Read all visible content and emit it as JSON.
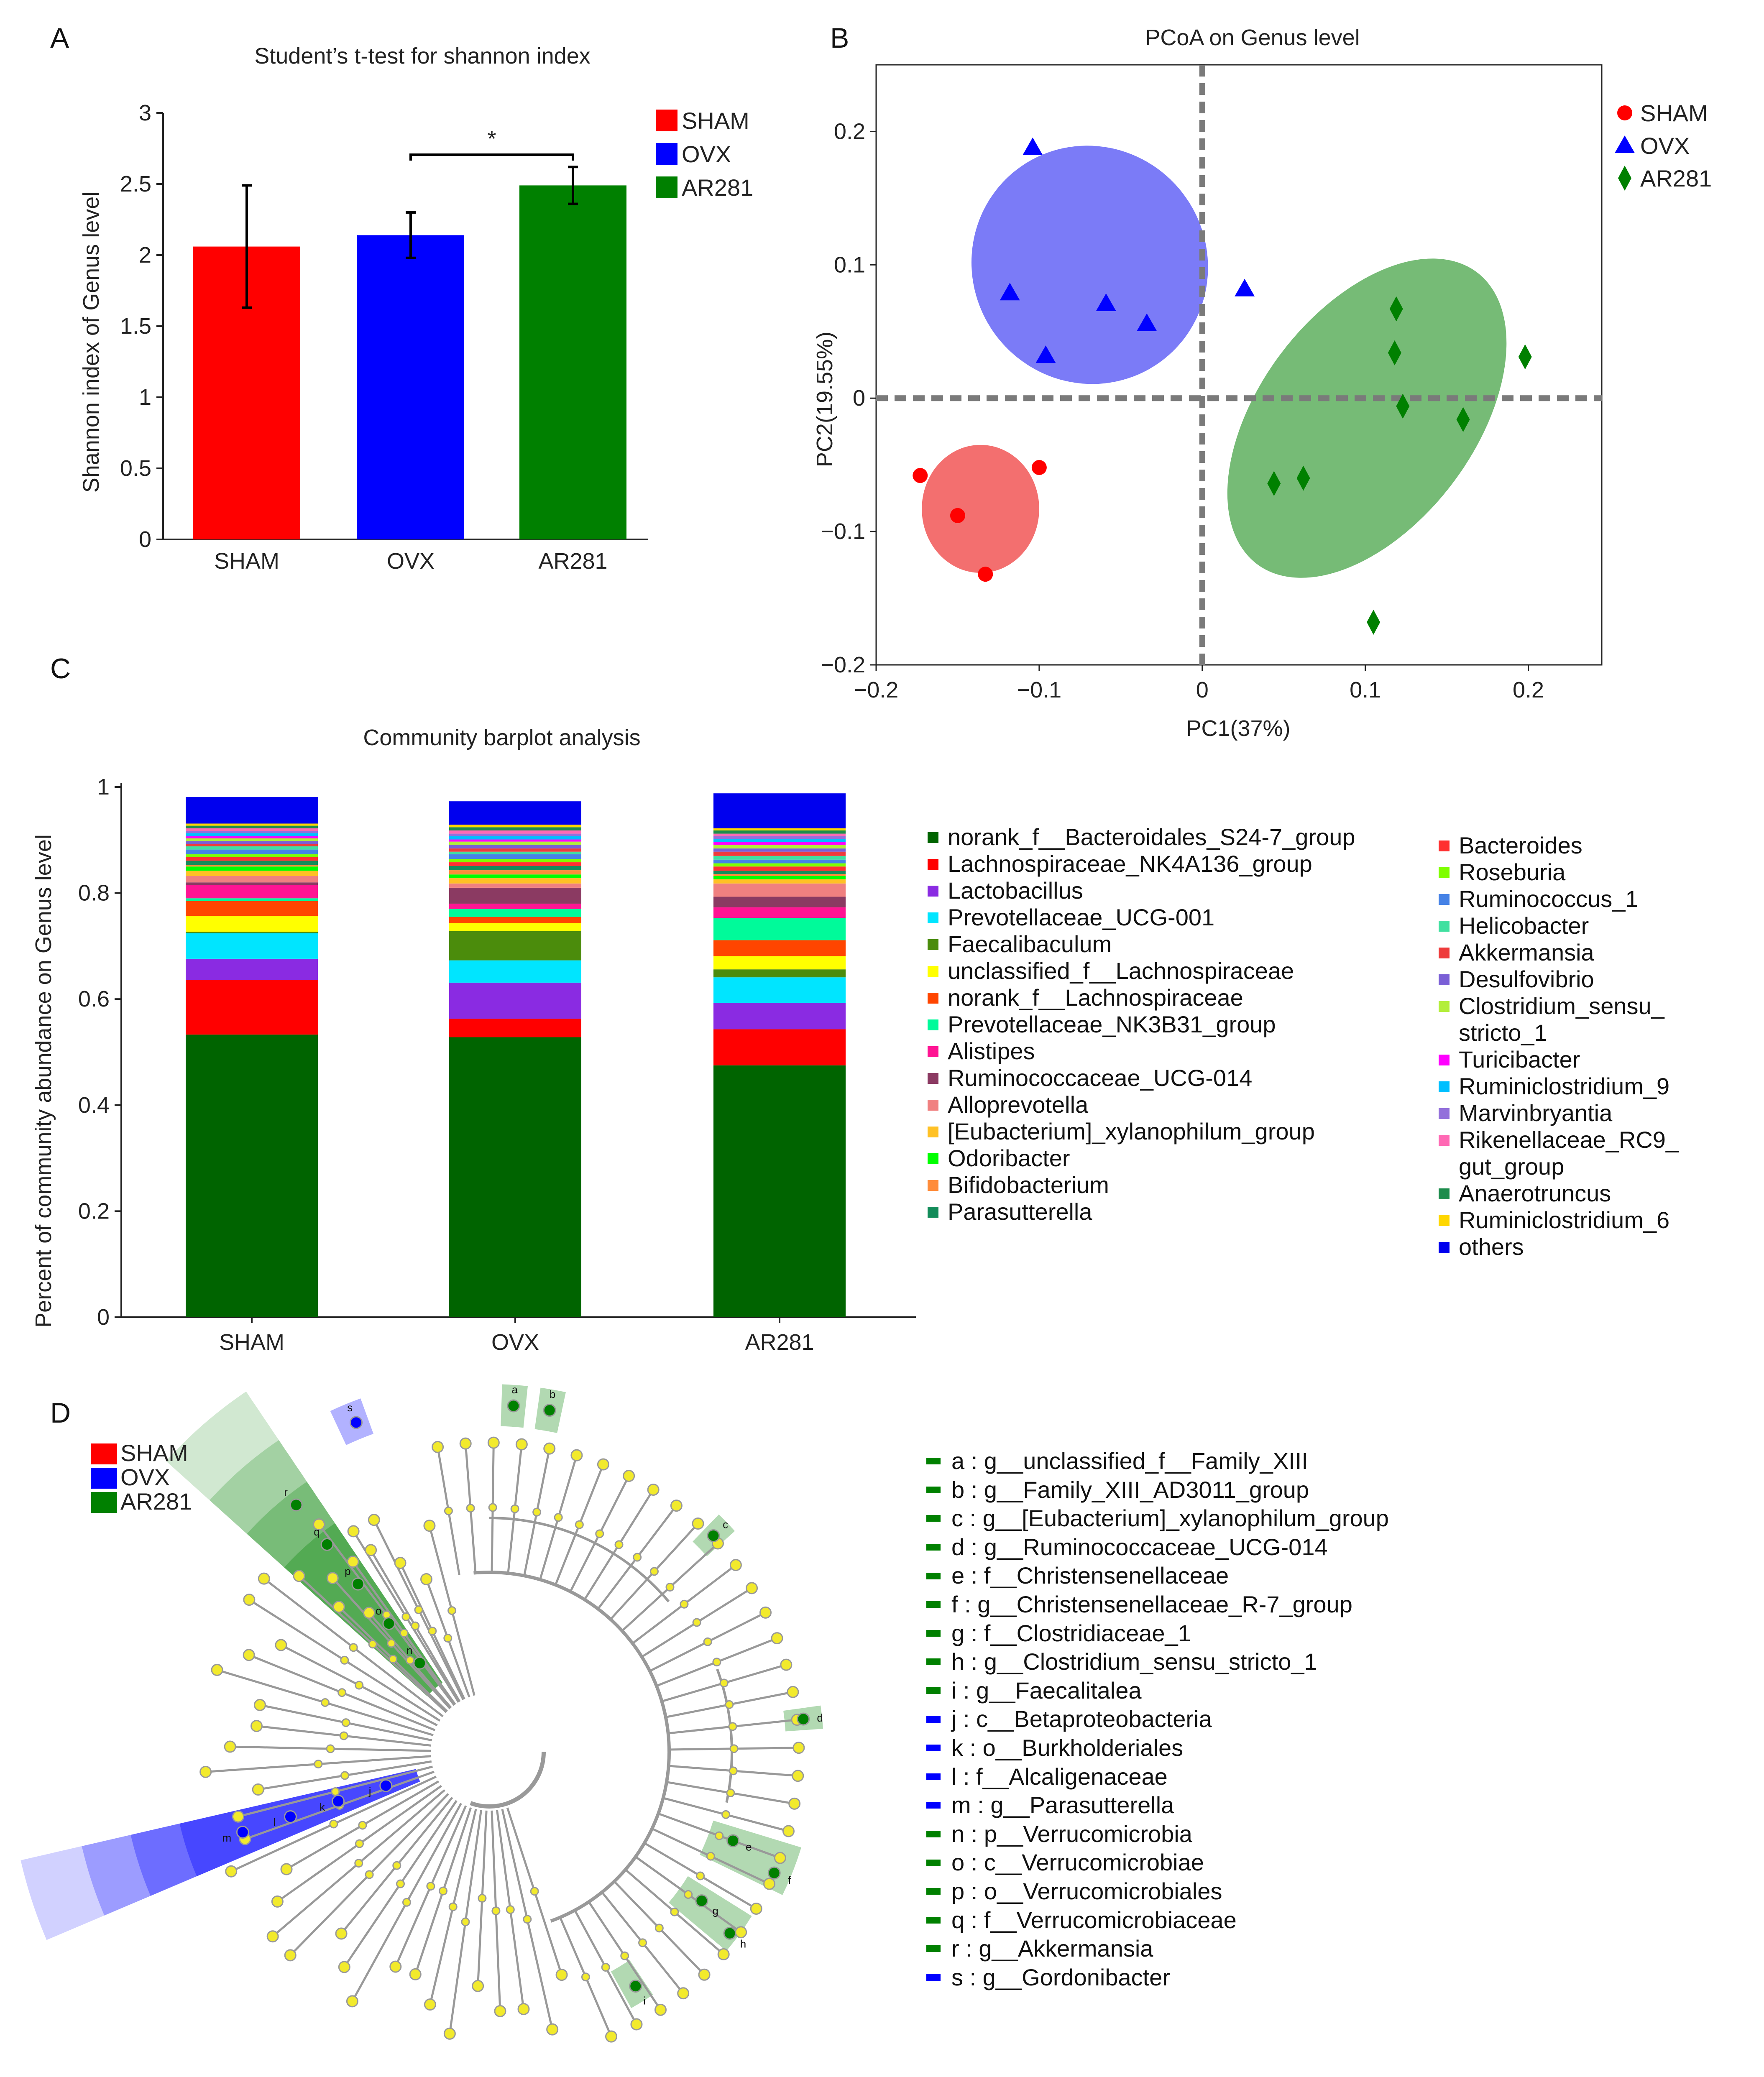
{
  "panels": {
    "a_letter": "A",
    "b_letter": "B",
    "c_letter": "C",
    "d_letter": "D"
  },
  "colors": {
    "sham": "#ff0000",
    "ovx": "#0000ff",
    "ar281": "#008000",
    "sham_fill": "#f36f6f",
    "ovx_fill": "#7b7bf7",
    "ar281_fill": "#76bb76"
  },
  "chart_data": [
    {
      "id": "A",
      "type": "bar",
      "title": "Student’s t-test for shannon index",
      "xlabel": "",
      "ylabel": "Shannon index of Genus level",
      "categories": [
        "SHAM",
        "OVX",
        "AR281"
      ],
      "values": [
        2.06,
        2.14,
        2.49
      ],
      "errors": [
        0.43,
        0.16,
        0.13
      ],
      "ylim": [
        0,
        3
      ],
      "yticks": [
        0,
        0.5,
        1,
        1.5,
        2,
        2.5,
        3
      ],
      "ytick_labels": [
        "0",
        "0.5",
        "1",
        "1.5",
        "2",
        "2.5",
        "3"
      ],
      "bar_colors": [
        "#ff0000",
        "#0000ff",
        "#008000"
      ],
      "significance": {
        "from": "OVX",
        "to": "AR281",
        "label": "*"
      },
      "legend": [
        "SHAM",
        "OVX",
        "AR281"
      ],
      "legend_position": "top-right"
    },
    {
      "id": "B",
      "type": "scatter",
      "title": "PCoA on Genus level",
      "xlabel": "PC1(37%)",
      "ylabel": "PC2(19.55%)",
      "xlim": [
        -0.2,
        0.245
      ],
      "ylim": [
        -0.2,
        0.25
      ],
      "xticks": [
        -0.2,
        -0.1,
        0,
        0.1,
        0.2
      ],
      "xtick_labels": [
        "−0.2",
        "−0.1",
        "0",
        "0.1",
        "0.2"
      ],
      "yticks": [
        -0.2,
        -0.1,
        0,
        0.1,
        0.2
      ],
      "ytick_labels": [
        "−0.2",
        "−0.1",
        "0",
        "0.1",
        "0.2"
      ],
      "series": [
        {
          "name": "SHAM",
          "marker": "circle",
          "color": "#ff0000",
          "points": [
            [
              -0.173,
              -0.058
            ],
            [
              -0.1,
              -0.052
            ],
            [
              -0.15,
              -0.088
            ],
            [
              -0.133,
              -0.132
            ]
          ],
          "ellipse": {
            "cx": -0.136,
            "cy": -0.083,
            "rx": 0.036,
            "ry": 0.048,
            "angle": 0
          }
        },
        {
          "name": "OVX",
          "marker": "triangle",
          "color": "#0000ff",
          "points": [
            [
              -0.104,
              0.188
            ],
            [
              -0.118,
              0.079
            ],
            [
              -0.059,
              0.071
            ],
            [
              -0.034,
              0.056
            ],
            [
              -0.096,
              0.032
            ],
            [
              0.026,
              0.082
            ]
          ],
          "ellipse": {
            "cx": -0.069,
            "cy": 0.1,
            "rx": 0.072,
            "ry": 0.09,
            "angle": -35
          }
        },
        {
          "name": "AR281",
          "marker": "diamond",
          "color": "#008000",
          "points": [
            [
              0.119,
              0.067
            ],
            [
              0.118,
              0.034
            ],
            [
              0.198,
              0.031
            ],
            [
              0.123,
              -0.006
            ],
            [
              0.16,
              -0.016
            ],
            [
              0.062,
              -0.06
            ],
            [
              0.044,
              -0.064
            ],
            [
              0.105,
              -0.168
            ]
          ],
          "ellipse": {
            "cx": 0.101,
            "cy": -0.015,
            "rx": 0.066,
            "ry": 0.137,
            "angle": 37
          }
        }
      ],
      "legend": [
        "SHAM",
        "OVX",
        "AR281"
      ],
      "legend_position": "top-right"
    },
    {
      "id": "C",
      "type": "bar",
      "stacked": true,
      "title": "Community barplot analysis",
      "xlabel": "",
      "ylabel": "Percent of community abundance on Genus level",
      "categories": [
        "SHAM",
        "OVX",
        "AR281"
      ],
      "ylim": [
        0,
        1
      ],
      "yticks": [
        0,
        0.2,
        0.4,
        0.6,
        0.8,
        1
      ],
      "ytick_labels": [
        "0",
        "0.2",
        "0.4",
        "0.6",
        "0.8",
        "1"
      ],
      "series": [
        {
          "name": "norank_f__Bacteroidales_S24-7_group",
          "color": "#006400",
          "values": [
            0.533,
            0.528,
            0.475
          ]
        },
        {
          "name": "Lachnospiraceae_NK4A136_group",
          "color": "#ff0000",
          "values": [
            0.103,
            0.035,
            0.068
          ]
        },
        {
          "name": "Lactobacillus",
          "color": "#8a2be2",
          "values": [
            0.04,
            0.068,
            0.05
          ]
        },
        {
          "name": "Prevotellaceae_UCG-001",
          "color": "#00e5ff",
          "values": [
            0.048,
            0.042,
            0.048
          ]
        },
        {
          "name": "Faecalibaculum",
          "color": "#4b8c0c",
          "values": [
            0.003,
            0.055,
            0.015
          ]
        },
        {
          "name": "unclassified_f__Lachnospiraceae",
          "color": "#ffff00",
          "values": [
            0.03,
            0.015,
            0.025
          ]
        },
        {
          "name": "norank_f__Lachnospiraceae",
          "color": "#ff4500",
          "values": [
            0.028,
            0.012,
            0.03
          ]
        },
        {
          "name": "Prevotellaceae_NK3B31_group",
          "color": "#00fa9a",
          "values": [
            0.005,
            0.015,
            0.042
          ]
        },
        {
          "name": "Alistipes",
          "color": "#ff1493",
          "values": [
            0.025,
            0.01,
            0.02
          ]
        },
        {
          "name": "Ruminococcaceae_UCG-014",
          "color": "#8b3a62",
          "values": [
            0.005,
            0.03,
            0.02
          ]
        },
        {
          "name": "Alloprevotella",
          "color": "#f08080",
          "values": [
            0.012,
            0.008,
            0.025
          ]
        },
        {
          "name": "[Eubacterium]_xylanophilum_group",
          "color": "#ffc125",
          "values": [
            0.01,
            0.01,
            0.008
          ]
        },
        {
          "name": "Odoribacter",
          "color": "#00ff00",
          "values": [
            0.008,
            0.007,
            0.006
          ]
        },
        {
          "name": "Bifidobacterium",
          "color": "#ff8c3a",
          "values": [
            0.003,
            0.008,
            0.004
          ]
        },
        {
          "name": "Parasutterella",
          "color": "#138c5a",
          "values": [
            0.008,
            0.008,
            0.006
          ]
        },
        {
          "name": "Bacteroides",
          "color": "#ff3030",
          "values": [
            0.007,
            0.007,
            0.008
          ]
        },
        {
          "name": "Roseburia",
          "color": "#7fff00",
          "values": [
            0.005,
            0.006,
            0.006
          ]
        },
        {
          "name": "Ruminococcus_1",
          "color": "#4682e6",
          "values": [
            0.009,
            0.009,
            0.007
          ]
        },
        {
          "name": "Helicobacter",
          "color": "#40e0a0",
          "values": [
            0.006,
            0.005,
            0.007
          ]
        },
        {
          "name": "Akkermansia",
          "color": "#ee3b3b",
          "values": [
            0.004,
            0.006,
            0.008
          ]
        },
        {
          "name": "Desulfovibrio",
          "color": "#7a5fd6",
          "values": [
            0.006,
            0.007,
            0.006
          ]
        },
        {
          "name": "Clostridium_sensu_stricto_1",
          "color": "#b3ee3a",
          "values": [
            0.005,
            0.006,
            0.007
          ]
        },
        {
          "name": "Turicibacter",
          "color": "#ff00ff",
          "values": [
            0.004,
            0.004,
            0.005
          ]
        },
        {
          "name": "Ruminiclostridium_9",
          "color": "#00bfff",
          "values": [
            0.006,
            0.006,
            0.006
          ]
        },
        {
          "name": "Marvinbryantia",
          "color": "#9370db",
          "values": [
            0.004,
            0.005,
            0.005
          ]
        },
        {
          "name": "Rikenellaceae_RC9_gut_group",
          "color": "#ff69b4",
          "values": [
            0.005,
            0.006,
            0.005
          ]
        },
        {
          "name": "Anaerotruncus",
          "color": "#1c8c4c",
          "values": [
            0.005,
            0.006,
            0.006
          ]
        },
        {
          "name": "Ruminiclostridium_6",
          "color": "#ffd700",
          "values": [
            0.004,
            0.005,
            0.004
          ]
        },
        {
          "name": "others",
          "color": "#0000ee",
          "values": [
            0.05,
            0.044,
            0.066
          ]
        }
      ],
      "legend_position": "right"
    },
    {
      "id": "D",
      "type": "cladogram",
      "legend": [
        "SHAM",
        "OVX",
        "AR281"
      ],
      "legend_position": "top-left",
      "labels": [
        {
          "key": "a",
          "group": "AR281",
          "text": "a : g__unclassified_f__Family_XIII"
        },
        {
          "key": "b",
          "group": "AR281",
          "text": "b : g__Family_XIII_AD3011_group"
        },
        {
          "key": "c",
          "group": "AR281",
          "text": "c : g__[Eubacterium]_xylanophilum_group"
        },
        {
          "key": "d",
          "group": "AR281",
          "text": "d : g__Ruminococcaceae_UCG-014"
        },
        {
          "key": "e",
          "group": "AR281",
          "text": "e : f__Christensenellaceae"
        },
        {
          "key": "f",
          "group": "AR281",
          "text": "f : g__Christensenellaceae_R-7_group"
        },
        {
          "key": "g",
          "group": "AR281",
          "text": "g : f__Clostridiaceae_1"
        },
        {
          "key": "h",
          "group": "AR281",
          "text": "h : g__Clostridium_sensu_stricto_1"
        },
        {
          "key": "i",
          "group": "AR281",
          "text": "i : g__Faecalitalea"
        },
        {
          "key": "j",
          "group": "OVX",
          "text": "j : c__Betaproteobacteria"
        },
        {
          "key": "k",
          "group": "OVX",
          "text": "k : o__Burkholderiales"
        },
        {
          "key": "l",
          "group": "OVX",
          "text": "l : f__Alcaligenaceae"
        },
        {
          "key": "m",
          "group": "OVX",
          "text": "m : g__Parasutterella"
        },
        {
          "key": "n",
          "group": "AR281",
          "text": "n : p__Verrucomicrobia"
        },
        {
          "key": "o",
          "group": "AR281",
          "text": "o : c__Verrucomicrobiae"
        },
        {
          "key": "p",
          "group": "AR281",
          "text": "p : o__Verrucomicrobiales"
        },
        {
          "key": "q",
          "group": "AR281",
          "text": "q : f__Verrucomicrobiaceae"
        },
        {
          "key": "r",
          "group": "AR281",
          "text": "r : g__Akkermansia"
        },
        {
          "key": "s",
          "group": "OVX",
          "text": "s : g__Gordonibacter"
        }
      ]
    }
  ]
}
